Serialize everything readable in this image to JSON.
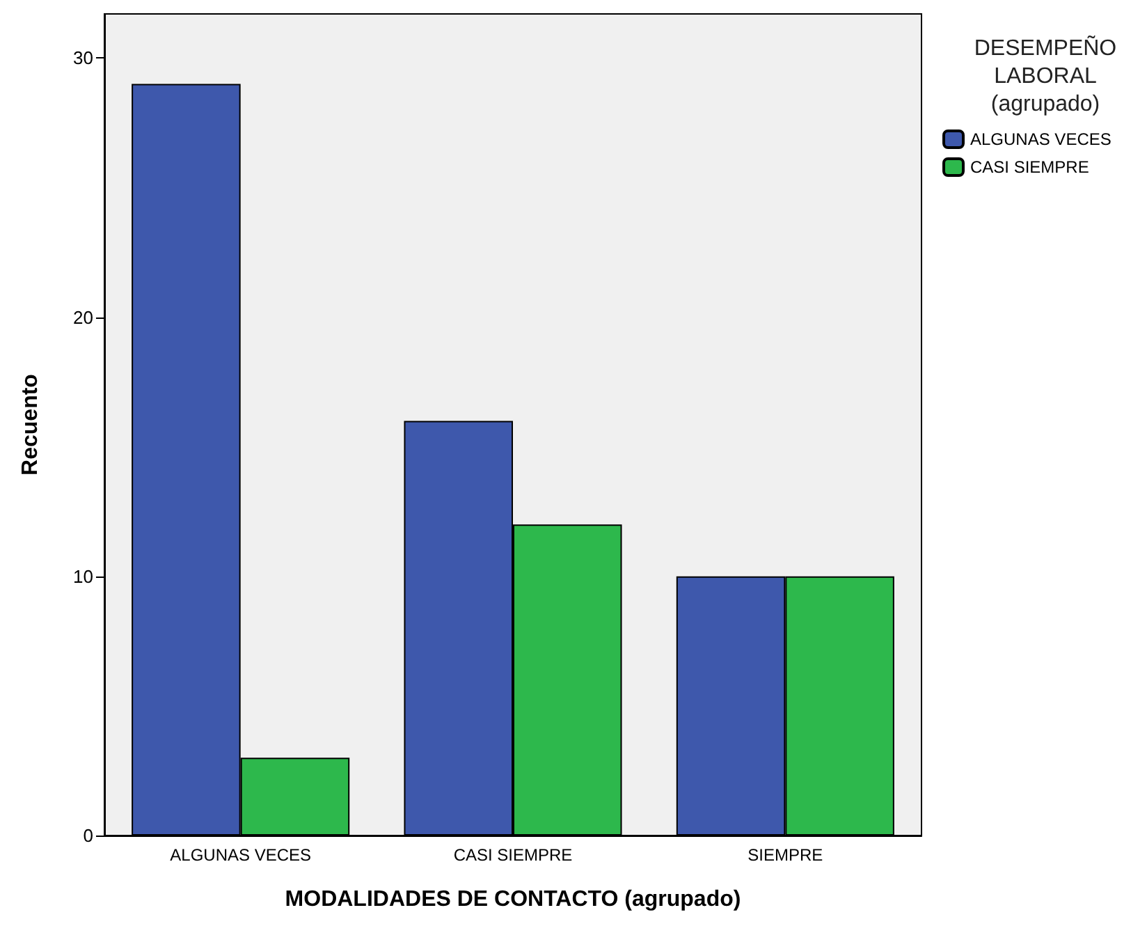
{
  "chart_data": {
    "type": "bar",
    "xlabel": "MODALIDADES DE CONTACTO (agrupado)",
    "ylabel": "Recuento",
    "legend_title": "DESEMPEÑO\nLABORAL\n(agrupado)",
    "categories": [
      "ALGUNAS VECES",
      "CASI SIEMPRE",
      "SIEMPRE"
    ],
    "series": [
      {
        "name": "ALGUNAS VECES",
        "color": "#3e58ac",
        "values": [
          29,
          16,
          10
        ]
      },
      {
        "name": "CASI SIEMPRE",
        "color": "#2db84c",
        "values": [
          3,
          12,
          10
        ]
      }
    ],
    "ylim": [
      0,
      31.7
    ],
    "yticks": [
      0,
      10,
      20,
      30
    ],
    "grid": false,
    "legend": "right"
  }
}
